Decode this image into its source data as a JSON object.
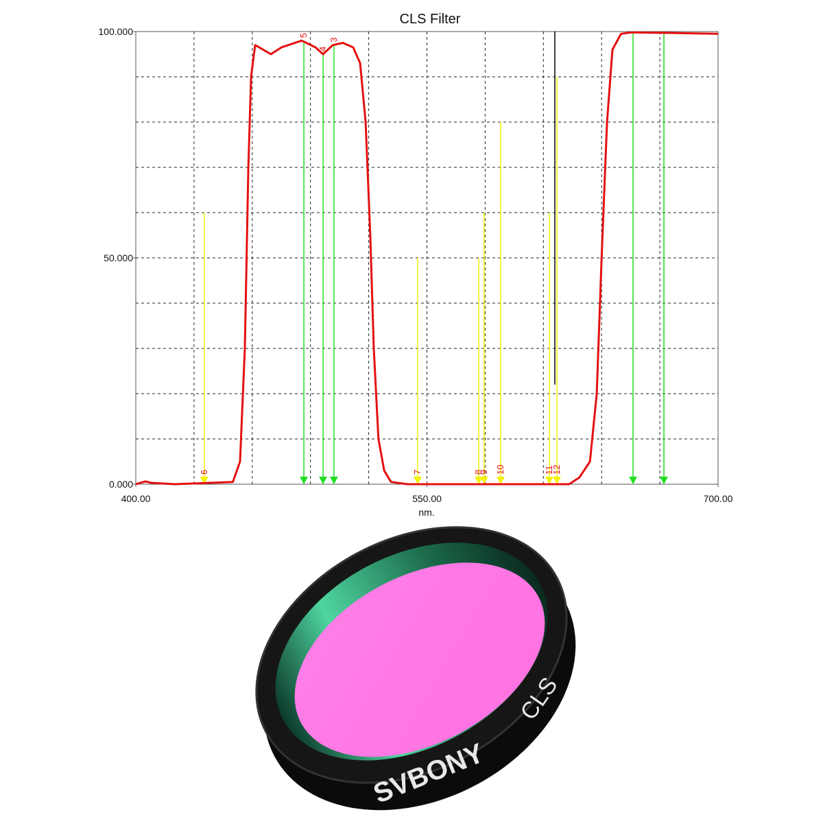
{
  "chart_data": {
    "type": "line",
    "title": "CLS Filter",
    "x_label": "nm.",
    "x": [
      400,
      403,
      405,
      408,
      420,
      450,
      453.7,
      456.2,
      458,
      459.4,
      461.5,
      463.6,
      469.6,
      475,
      485.5,
      492.6,
      496.5,
      501.4,
      506.7,
      512,
      515.6,
      518.4,
      520.8,
      522.6,
      525,
      528,
      531.5,
      540,
      600,
      623.3,
      628.6,
      634,
      637.5,
      640,
      642.8,
      645.6,
      650,
      655,
      675,
      700
    ],
    "values": [
      0,
      0.4,
      0.6,
      0.3,
      0,
      0.5,
      5,
      30,
      70,
      90,
      97,
      96.5,
      95,
      96.5,
      98,
      96.5,
      95,
      97,
      97.5,
      96.5,
      93,
      80,
      55,
      30,
      10,
      3,
      0.5,
      0,
      0,
      0,
      1.5,
      5,
      20,
      50,
      80,
      96,
      99.5,
      99.8,
      99.7,
      99.5
    ],
    "color": "#e51010",
    "xlim": [
      400,
      700
    ],
    "ylim": [
      0,
      100
    ],
    "xticks": [
      {
        "value": 400,
        "label": "400.00"
      },
      {
        "value": 550,
        "label": "550.00"
      },
      {
        "value": 700,
        "label": "700.00"
      }
    ],
    "yticks": [
      {
        "value": 0,
        "label": "0.000"
      },
      {
        "value": 50,
        "label": "50.000"
      },
      {
        "value": 100,
        "label": "100.000"
      }
    ],
    "xgrid": [
      430,
      460,
      490,
      520,
      550,
      580,
      610,
      640,
      670
    ],
    "ygrid": [
      10,
      20,
      30,
      40,
      50,
      60,
      70,
      80,
      90
    ],
    "markers": [
      {
        "x": 435.3,
        "top": 60,
        "color": "#f2f20a",
        "label": "6"
      },
      {
        "x": 486.6,
        "top": 98,
        "color": "#22dd22",
        "label": "5"
      },
      {
        "x": 496.5,
        "top": 95,
        "color": "#22dd22",
        "label": "4"
      },
      {
        "x": 502.1,
        "top": 97,
        "color": "#22dd22",
        "label": "3"
      },
      {
        "x": 545.2,
        "top": 50,
        "color": "#f2f20a",
        "label": "7"
      },
      {
        "x": 576.7,
        "top": 50,
        "color": "#f2f20a",
        "label": "8"
      },
      {
        "x": 579.5,
        "top": 60,
        "color": "#f2f20a",
        "label": "9"
      },
      {
        "x": 588,
        "top": 80,
        "color": "#f2f20a",
        "label": "10"
      },
      {
        "x": 613.1,
        "top": 60,
        "color": "#f2f20a",
        "label": "11"
      },
      {
        "x": 617,
        "top": 90,
        "color": "#f2f20a",
        "label": "12"
      },
      {
        "x": 656.2,
        "top": 99.8,
        "color": "#22dd22",
        "label": null
      },
      {
        "x": 672.1,
        "top": 99.6,
        "color": "#22dd22",
        "label": null
      }
    ],
    "cursor": {
      "x": 615.9,
      "from": 22,
      "to": 100,
      "color": "#000000"
    }
  },
  "product": {
    "brand": "SVBONY",
    "label": "CLS"
  }
}
